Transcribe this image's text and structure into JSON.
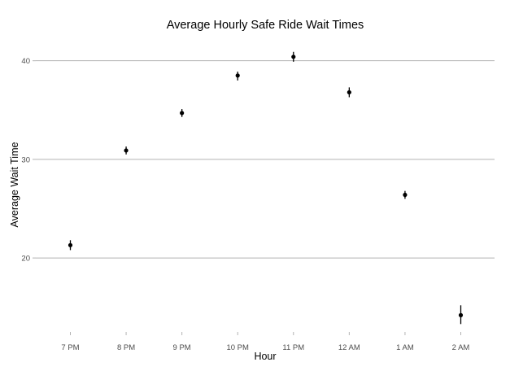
{
  "chart_data": {
    "type": "scatter",
    "title": "Average Hourly Safe Ride Wait Times",
    "xlabel": "Hour",
    "ylabel": "Average Wait Time",
    "categories": [
      "7 PM",
      "8 PM",
      "9 PM",
      "10 PM",
      "11 PM",
      "12 AM",
      "1 AM",
      "2 AM"
    ],
    "series": [
      {
        "values": [
          21.3,
          30.9,
          34.7,
          38.5,
          40.4,
          36.8,
          26.4,
          14.2
        ],
        "error_low": [
          20.8,
          30.5,
          34.3,
          38.0,
          39.9,
          36.3,
          26.0,
          13.3
        ],
        "error_high": [
          21.8,
          31.3,
          35.1,
          38.9,
          40.9,
          37.3,
          26.8,
          15.2
        ]
      }
    ],
    "yticks": [
      20,
      30,
      40
    ],
    "ylim": [
      12.5,
      42.2
    ],
    "grid": "horizontal major",
    "legend": "none",
    "colors": {
      "point": "#000000",
      "grid": "#b3b3b3",
      "tick_text": "#4d4d4d"
    }
  }
}
